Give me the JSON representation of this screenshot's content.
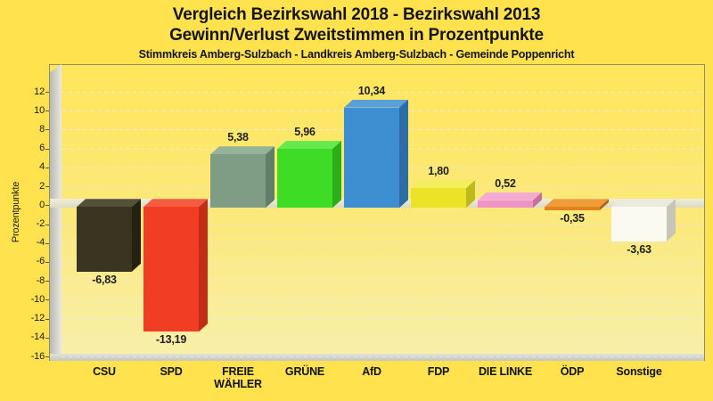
{
  "chart_data": {
    "type": "bar",
    "title": "Vergleich Bezirkswahl 2018 - Bezirkswahl 2013",
    "subtitle": "Gewinn/Verlust Zweitstimmen in Prozentpunkte",
    "region_line": "Stimmkreis Amberg-Sulzbach - Landkreis Amberg-Sulzbach - Gemeinde Poppenricht",
    "ylabel": "Prozentpunkte",
    "ylim": [
      -16,
      12
    ],
    "ytick_step": 2,
    "grid": true,
    "legend": false,
    "style": "3d-bars",
    "categories": [
      "CSU",
      "SPD",
      "FREIE\nWÄHLER",
      "GRÜNE",
      "AfD",
      "FDP",
      "DIE LINKE",
      "ÖDP",
      "Sonstige"
    ],
    "values": [
      -6.83,
      -13.19,
      5.38,
      5.96,
      10.34,
      1.8,
      0.52,
      -0.35,
      -3.63
    ],
    "value_labels": [
      "-6,83",
      "-13,19",
      "5,38",
      "5,96",
      "10,34",
      "1,80",
      "0,52",
      "-0,35",
      "-3,63"
    ],
    "bar_colors": [
      {
        "party": "CSU",
        "front": "#3a3521",
        "top": "#54503a",
        "side": "#252112"
      },
      {
        "party": "SPD",
        "front": "#f23d25",
        "top": "#f55c40",
        "side": "#c22d17"
      },
      {
        "party": "FREIE WÄHLER",
        "front": "#7e9d84",
        "top": "#97b29b",
        "side": "#5f7f66"
      },
      {
        "party": "GRÜNE",
        "front": "#3edc25",
        "top": "#66e94c",
        "side": "#2cae18"
      },
      {
        "party": "AfD",
        "front": "#3e8ed2",
        "top": "#58a0da",
        "side": "#2d6ca4"
      },
      {
        "party": "FDP",
        "front": "#ebe426",
        "top": "#f2ee5c",
        "side": "#bfb91c"
      },
      {
        "party": "DIE LINKE",
        "front": "#ef93c4",
        "top": "#f3abd2",
        "side": "#c76f9f"
      },
      {
        "party": "ÖDP",
        "front": "#e2831e",
        "top": "#ee9c36",
        "side": "#b26418"
      },
      {
        "party": "Sonstige",
        "front": "#fbfaf0",
        "top": "#ebebdd",
        "side": "#c7c5b7"
      }
    ],
    "colors": {
      "page_bg": "#ffe24e",
      "plot_bg_top": "#ffe65a",
      "plot_bg_bottom": "#f8f0ab",
      "gridline": "#e7e7df",
      "zero_band": "#e6e4cc",
      "wall": "#c9c9c1",
      "text": "#141414"
    }
  }
}
